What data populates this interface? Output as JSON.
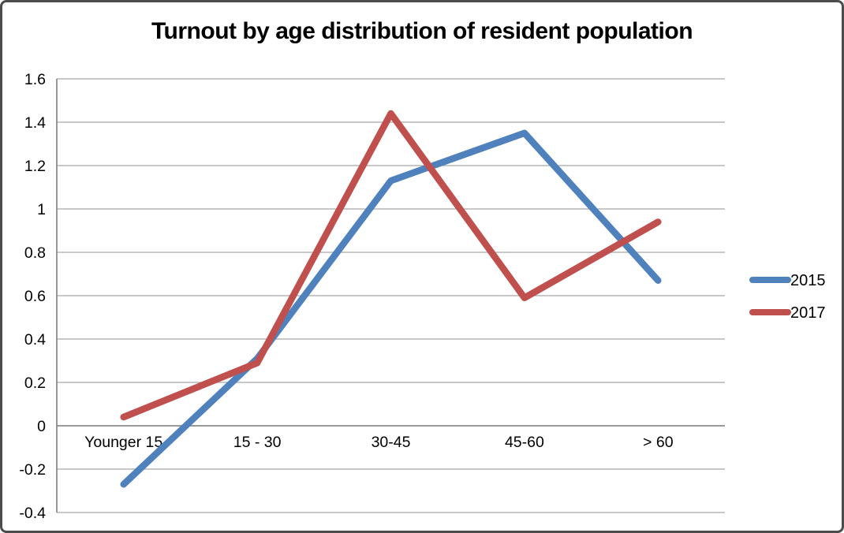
{
  "window": {
    "background_color": "#ffffff",
    "border_color": "#4c4c4c"
  },
  "chart_data": {
    "type": "line",
    "title": "Turnout by age distribution of resident population",
    "categories": [
      "Younger 15",
      "15 - 30",
      "30-45",
      "45-60",
      "> 60"
    ],
    "series": [
      {
        "name": "2015",
        "color": "#4F81BD",
        "values": [
          -0.27,
          0.31,
          1.13,
          1.35,
          0.67
        ]
      },
      {
        "name": "2017",
        "color": "#C0504D",
        "values": [
          0.04,
          0.29,
          1.44,
          0.59,
          0.94
        ]
      }
    ],
    "xlabel": "",
    "ylabel": "",
    "ylim": [
      -0.4,
      1.6
    ],
    "ytick_step": 0.2,
    "ytick_labels": [
      "1.6",
      "1.4",
      "1.2",
      "1",
      "0.8",
      "0.6",
      "0.4",
      "0.2",
      "0",
      "-0.2",
      "-0.4"
    ],
    "grid": "horizontal",
    "gridline_color": "#A6A6A6",
    "axis_color": "#7F7F7F",
    "text_color": "#000000",
    "line_width": 8.5,
    "legend_position": "right"
  }
}
